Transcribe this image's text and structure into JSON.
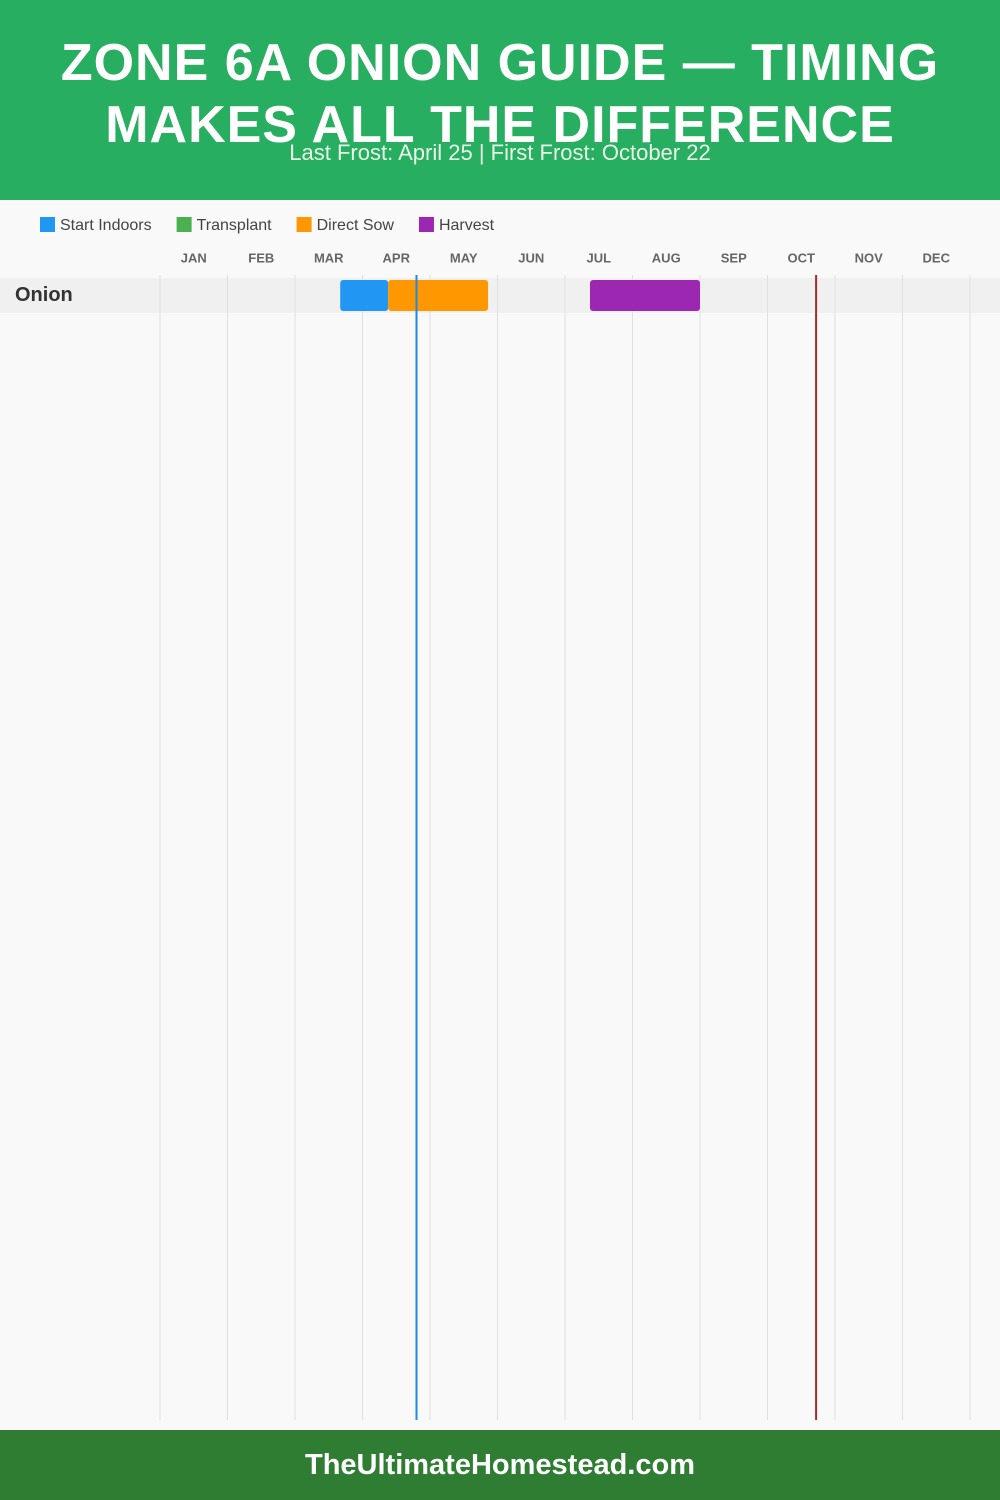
{
  "chart_data": {
    "type": "gantt",
    "title": "ZONE 6A ONION GUIDE — TIMING MAKES ALL THE DIFFERENCE",
    "subtitle": "Last Frost: April 25 | First Frost: October 22",
    "footer": "TheUltimateHomestead.com",
    "categories": [
      "JAN",
      "FEB",
      "MAR",
      "APR",
      "MAY",
      "JUN",
      "JUL",
      "AUG",
      "SEP",
      "OCT",
      "NOV",
      "DEC"
    ],
    "xlim": [
      0,
      12
    ],
    "rows": [
      "Onion"
    ],
    "series": [
      {
        "name": "Start Indoors",
        "color": "#2196f3",
        "start": [
          2.67
        ],
        "end": [
          3.38
        ]
      },
      {
        "name": "Transplant",
        "color": "#4caf50",
        "start": [
          null
        ],
        "end": [
          null
        ]
      },
      {
        "name": "Direct Sow",
        "color": "#ff9800",
        "start": [
          3.38
        ],
        "end": [
          4.86
        ]
      },
      {
        "name": "Harvest",
        "color": "#9c27b0",
        "start": [
          6.37
        ],
        "end": [
          8.0
        ]
      }
    ],
    "frost_lines": [
      {
        "value": 3.8,
        "color": "#1e88e5"
      },
      {
        "value": 9.72,
        "color": "#a52a2a"
      }
    ],
    "grid": true
  }
}
